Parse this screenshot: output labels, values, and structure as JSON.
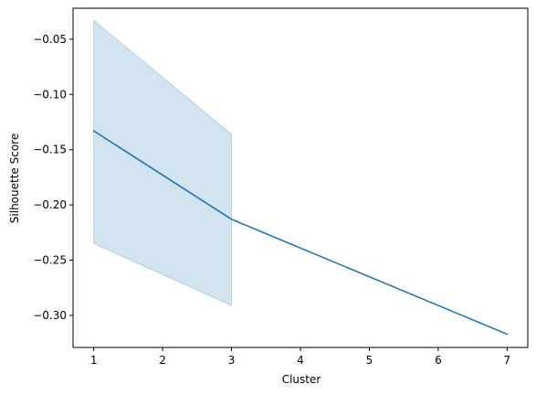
{
  "chart_data": {
    "type": "line",
    "title": "",
    "xlabel": "Cluster",
    "ylabel": "Silhouette Score",
    "xlim": [
      0.7,
      7.3
    ],
    "ylim": [
      -0.329,
      -0.022
    ],
    "x_ticks": [
      1,
      2,
      3,
      4,
      5,
      6,
      7
    ],
    "x_tick_labels": [
      "1",
      "2",
      "3",
      "4",
      "5",
      "6",
      "7"
    ],
    "y_ticks": [
      -0.3,
      -0.25,
      -0.2,
      -0.15,
      -0.1,
      -0.05
    ],
    "y_tick_labels": [
      "−0.30",
      "−0.25",
      "−0.20",
      "−0.15",
      "−0.10",
      "−0.05"
    ],
    "grid": false,
    "line_color": "#1f77b4",
    "band_color": "#1f77b4",
    "band_opacity": 0.2,
    "series": [
      {
        "x": [
          1,
          3,
          7
        ],
        "y": [
          -0.133,
          -0.213,
          -0.317
        ],
        "ci_lower": [
          -0.235,
          -0.291,
          -0.317
        ],
        "ci_upper": [
          -0.033,
          -0.136,
          -0.317
        ]
      }
    ]
  }
}
